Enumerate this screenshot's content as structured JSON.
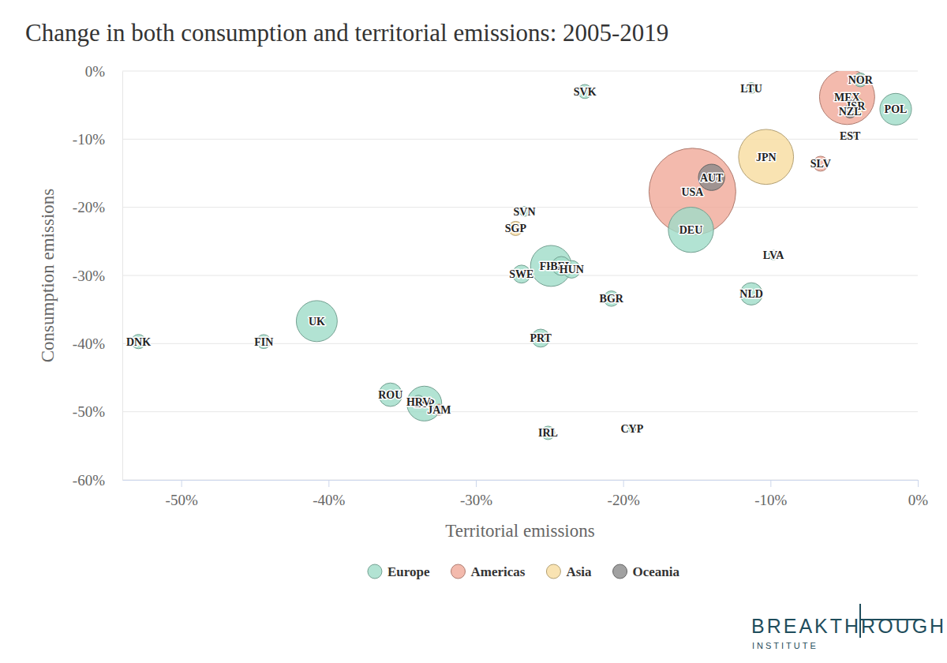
{
  "chart_data": {
    "type": "scatter",
    "title": "Change in both consumption and territorial emissions: 2005-2019",
    "x_label": "Territorial emissions",
    "y_label": "Consumption emissions",
    "xlim": [
      -54,
      0
    ],
    "ylim": [
      -60,
      0
    ],
    "xticks": [
      {
        "value": -50,
        "label": "-50%"
      },
      {
        "value": -40,
        "label": "-40%"
      },
      {
        "value": -30,
        "label": "-30%"
      },
      {
        "value": -20,
        "label": "-20%"
      },
      {
        "value": -10,
        "label": "-10%"
      },
      {
        "value": 0,
        "label": "0%"
      }
    ],
    "yticks": [
      {
        "value": 0,
        "label": "0%"
      },
      {
        "value": -10,
        "label": "-10%"
      },
      {
        "value": -20,
        "label": "-20%"
      },
      {
        "value": -30,
        "label": "-30%"
      },
      {
        "value": -40,
        "label": "-40%"
      },
      {
        "value": -50,
        "label": "-50%"
      },
      {
        "value": -60,
        "label": "-60%"
      }
    ],
    "grid": true,
    "legend": "bottom",
    "logo": "BREAKTHROUGH",
    "logo_sub": "INSTITUTE",
    "series": [
      {
        "name": "Europe",
        "color": "#9fdcc8",
        "labels": [
          "DNK",
          "FIN",
          "UK",
          "ROU",
          "HRV",
          "ESP",
          "IRL",
          "CYP",
          "PRT",
          "BGR",
          "SWE",
          "FRA",
          "BEL",
          "HUN",
          "SVN",
          "SVK",
          "LTU",
          "NLD",
          "LVA",
          "DEU",
          "EST",
          "POL",
          "NOR"
        ],
        "x": [
          -52.9,
          -44.4,
          -40.8,
          -35.8,
          -33.9,
          -33.5,
          -25.1,
          -19.4,
          -25.6,
          -20.8,
          -26.9,
          -24.9,
          -24.2,
          -23.5,
          -26.7,
          -22.6,
          -11.3,
          -11.3,
          -9.8,
          -15.4,
          -4.6,
          -1.5,
          -3.9
        ],
        "values": [
          -39.7,
          -39.7,
          -36.7,
          -47.5,
          -48.5,
          -48.8,
          -53.1,
          -52.5,
          -39.2,
          -33.4,
          -29.8,
          -28.6,
          -28.6,
          -29.1,
          -20.6,
          -3.0,
          -2.5,
          -32.7,
          -27.0,
          -23.3,
          -9.5,
          -5.6,
          -1.3
        ],
        "sizes": [
          5.8,
          5.5,
          67,
          19.4,
          4.1,
          47,
          4.9,
          0.9,
          10.3,
          7,
          10.3,
          67,
          11.5,
          9.8,
          2.1,
          5.5,
          2.8,
          17.3,
          1.9,
          83,
          1.3,
          38,
          5.3
        ]
      },
      {
        "name": "Americas",
        "color": "#f0a999",
        "labels": [
          "JAM",
          "USA",
          "SLV",
          "MEX"
        ],
        "x": [
          -32.5,
          -15.3,
          -6.6,
          -4.8
        ],
        "values": [
          -49.7,
          -17.7,
          -13.6,
          -3.8
        ],
        "sizes": [
          2.9,
          328,
          6.5,
          127
        ]
      },
      {
        "name": "Asia",
        "color": "#f7dc9f",
        "labels": [
          "SGP",
          "JPN",
          "ISR"
        ],
        "x": [
          -27.3,
          -10.3,
          -4.2
        ],
        "values": [
          -23.1,
          -12.6,
          -5.1
        ],
        "sizes": [
          5.7,
          126,
          9
        ]
      },
      {
        "name": "Oceania",
        "color": "#8a8a8a",
        "labels": [
          "AUT",
          "NZL"
        ],
        "x": [
          -14.0,
          -4.6
        ],
        "values": [
          -15.6,
          -5.9
        ],
        "sizes": [
          25,
          4.9
        ]
      }
    ]
  }
}
